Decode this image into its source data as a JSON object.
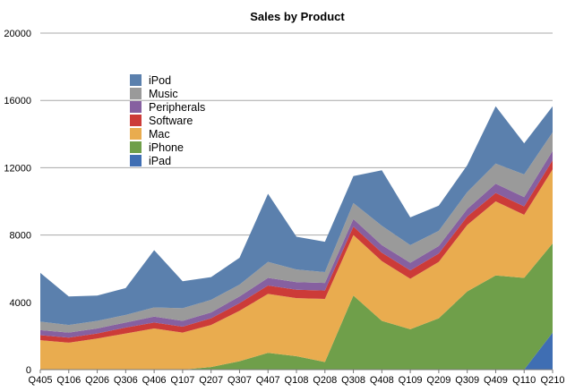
{
  "chart_data": {
    "type": "area",
    "stacked": true,
    "title": "Sales by Product",
    "xlabel": "",
    "ylabel": "",
    "ylim": [
      0,
      20000
    ],
    "yticks": [
      0,
      4000,
      8000,
      12000,
      16000,
      20000
    ],
    "grid": true,
    "legend_position": "top-left-inside",
    "categories": [
      "Q405",
      "Q106",
      "Q206",
      "Q306",
      "Q406",
      "Q107",
      "Q207",
      "Q307",
      "Q407",
      "Q108",
      "Q208",
      "Q308",
      "Q408",
      "Q109",
      "Q209",
      "Q309",
      "Q409",
      "Q110",
      "Q210"
    ],
    "series": [
      {
        "name": "iPad",
        "color": "#3f6eb3",
        "values": [
          0,
          0,
          0,
          0,
          0,
          0,
          0,
          0,
          0,
          0,
          0,
          0,
          0,
          0,
          0,
          0,
          0,
          0,
          2200
        ]
      },
      {
        "name": "iPhone",
        "color": "#6f9f4a",
        "values": [
          0,
          0,
          0,
          0,
          0,
          0,
          150,
          500,
          1000,
          800,
          450,
          4400,
          2900,
          2400,
          3050,
          4650,
          5600,
          5450,
          5300
        ]
      },
      {
        "name": "Mac",
        "color": "#e9ac4f",
        "values": [
          1750,
          1600,
          1850,
          2150,
          2450,
          2200,
          2500,
          3000,
          3500,
          3450,
          3750,
          3600,
          3550,
          3000,
          3350,
          3950,
          4400,
          3750,
          4400
        ]
      },
      {
        "name": "Software",
        "color": "#cc3b38",
        "values": [
          300,
          300,
          300,
          350,
          350,
          350,
          400,
          450,
          500,
          500,
          500,
          500,
          500,
          500,
          500,
          500,
          500,
          500,
          550
        ]
      },
      {
        "name": "Peripherals",
        "color": "#8660a0",
        "values": [
          300,
          300,
          300,
          300,
          350,
          350,
          350,
          400,
          450,
          450,
          450,
          450,
          450,
          450,
          450,
          450,
          550,
          550,
          550
        ]
      },
      {
        "name": "Music",
        "color": "#9a9a9a",
        "values": [
          500,
          450,
          450,
          450,
          550,
          750,
          750,
          700,
          950,
          750,
          650,
          950,
          1150,
          1050,
          900,
          1000,
          1200,
          1350,
          1100
        ]
      },
      {
        "name": "iPod",
        "color": "#5b80ad",
        "values": [
          2900,
          1700,
          1500,
          1600,
          3400,
          1600,
          1350,
          1600,
          4050,
          1950,
          1800,
          1600,
          3300,
          1650,
          1500,
          1600,
          3400,
          1850,
          1550
        ]
      }
    ],
    "legend_order": [
      "iPod",
      "Music",
      "Peripherals",
      "Software",
      "Mac",
      "iPhone",
      "iPad"
    ]
  }
}
